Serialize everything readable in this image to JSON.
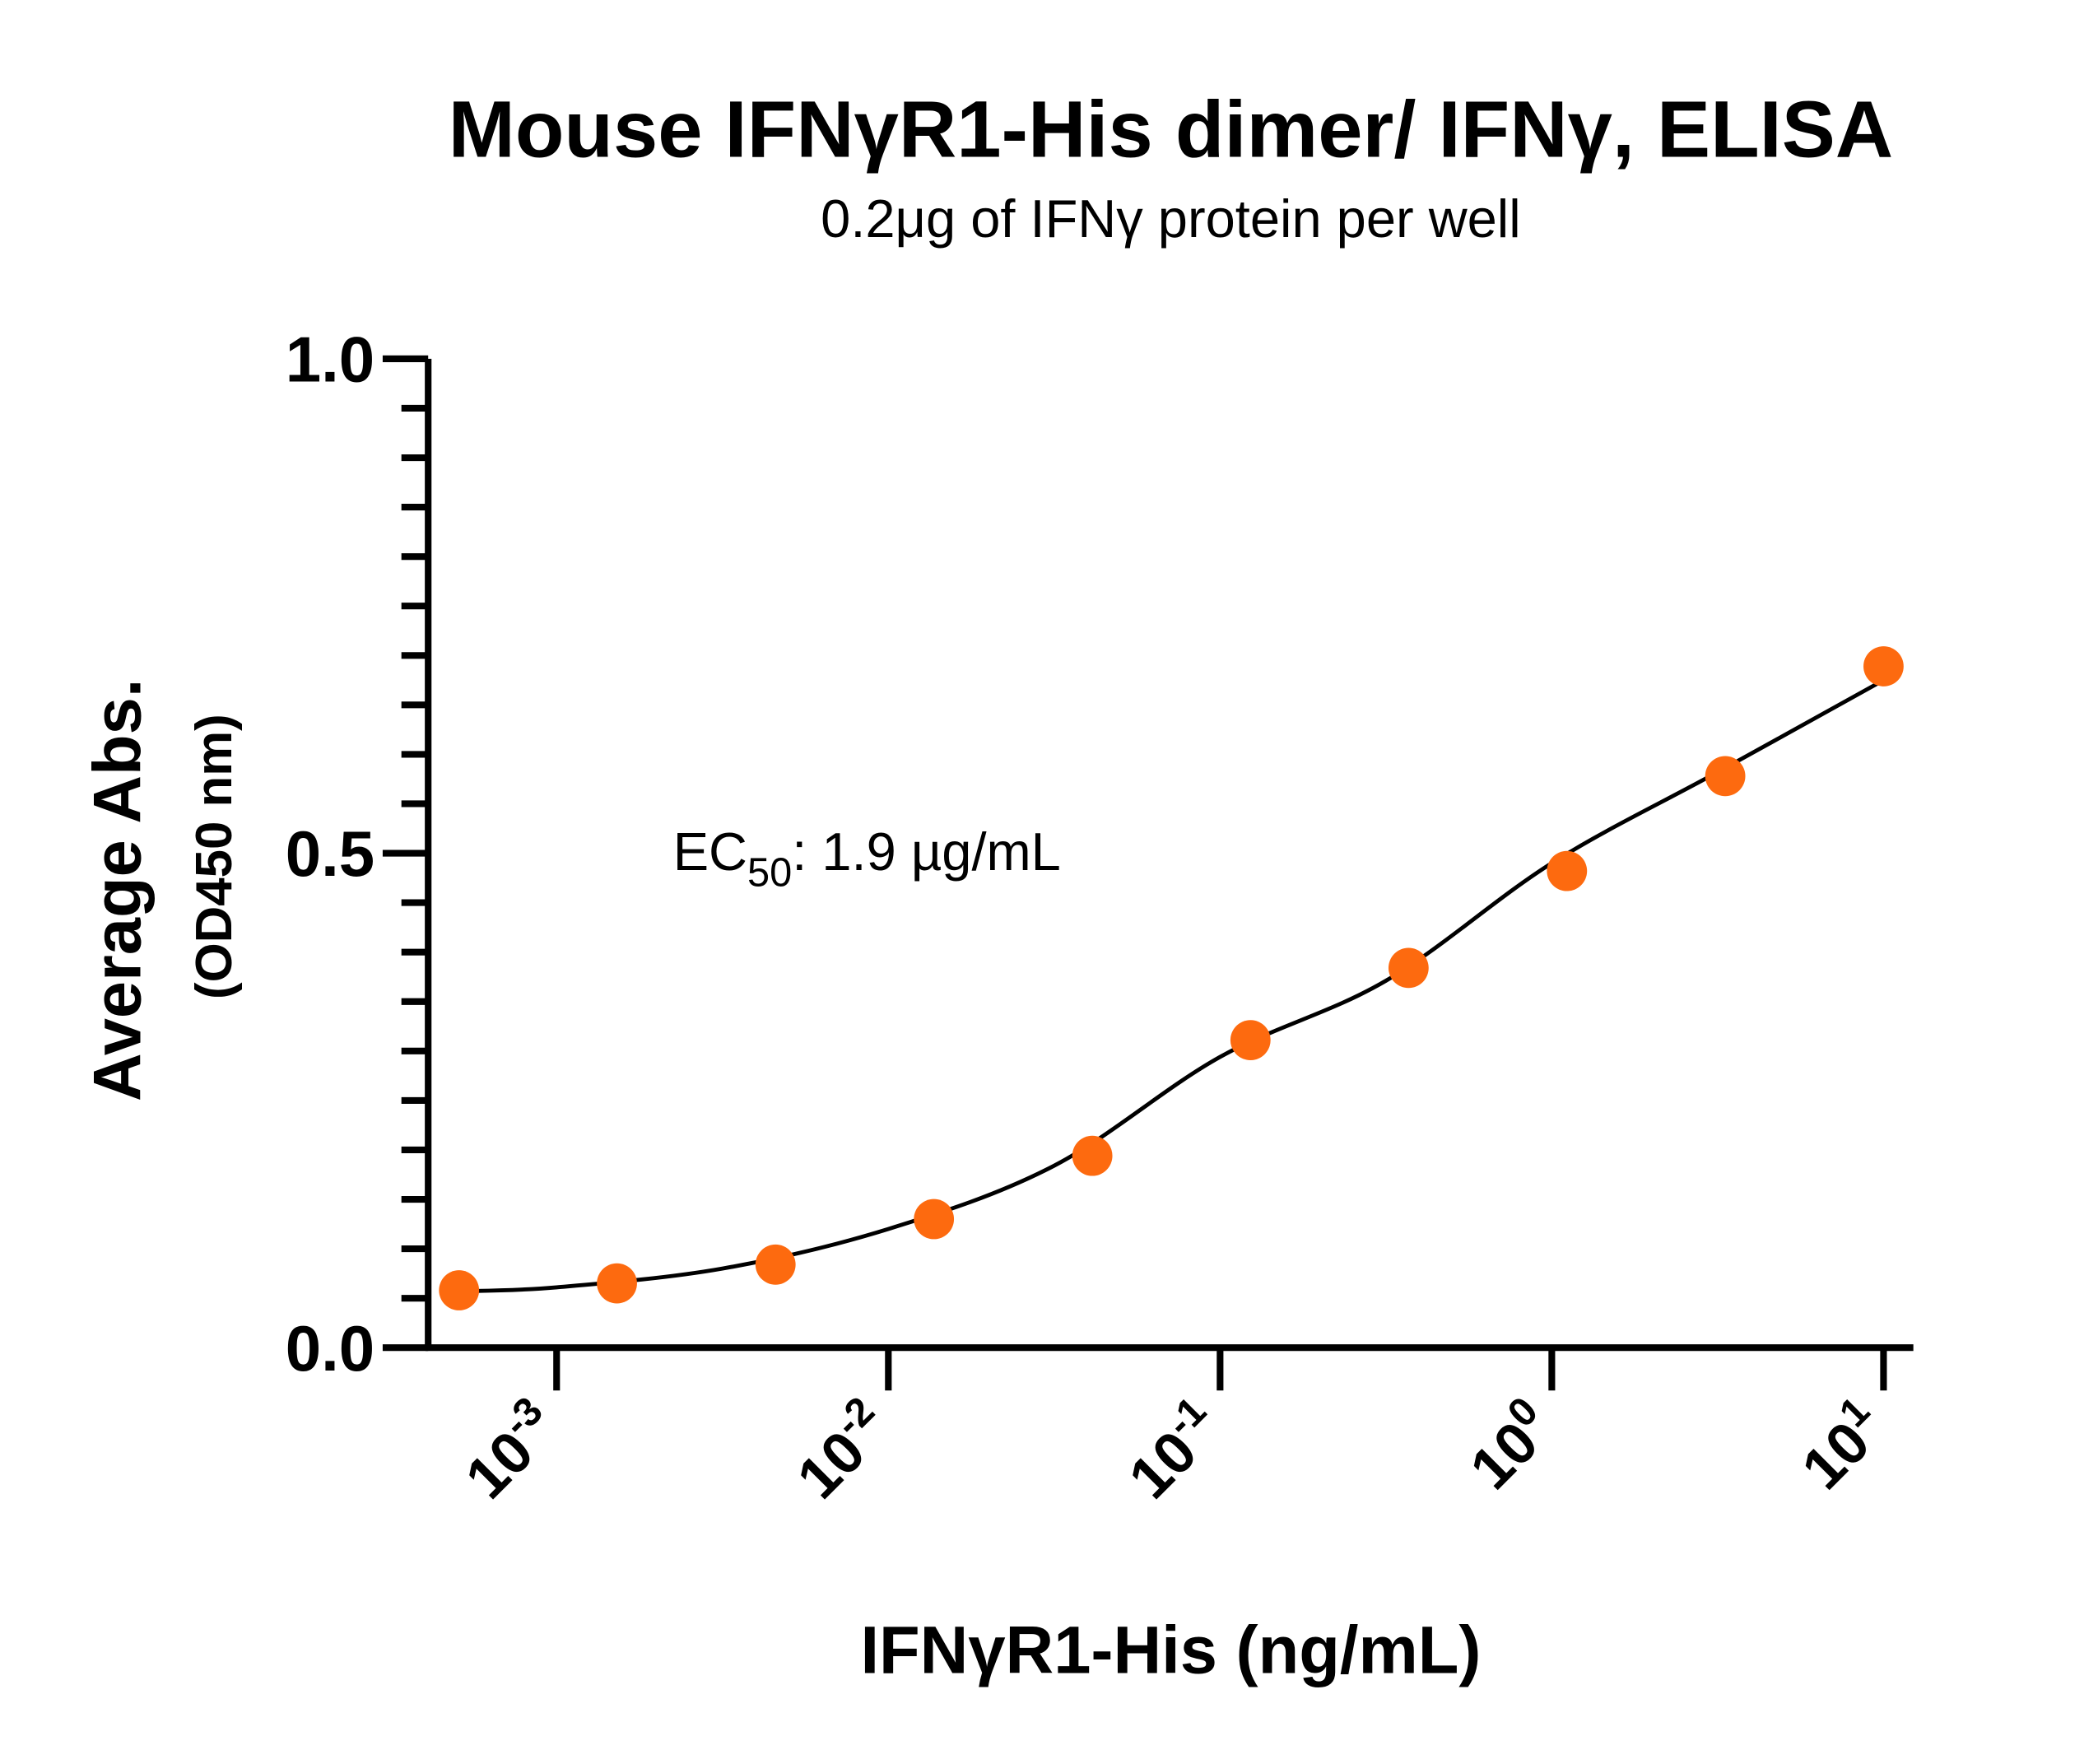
{
  "chart_data": {
    "type": "scatter",
    "title": "Mouse IFNγR1-His dimer/ IFNγ, ELISA",
    "subtitle": "0.2μg of IFNγ protein per well",
    "y_label": [
      "Average Abs.",
      "(OD450 nm)"
    ],
    "x_label": "IFNγR1-His (ng/mL)",
    "annotation": {
      "text": "EC",
      "sub": "50",
      "rest": ": 1.9 µg/mL"
    },
    "x_log": true,
    "xlim": [
      0.00041,
      12.3
    ],
    "ylim": [
      0,
      1
    ],
    "xticks": [
      {
        "value": 0.001,
        "label": "10",
        "exponent": "-3"
      },
      {
        "value": 0.01,
        "label": "10",
        "exponent": "-2"
      },
      {
        "value": 0.1,
        "label": "10",
        "exponent": "-1"
      },
      {
        "value": 1,
        "label": "10",
        "exponent": "0"
      },
      {
        "value": 10,
        "label": "10",
        "exponent": "1"
      }
    ],
    "yticks": [
      {
        "value": 0,
        "label": "0.0"
      },
      0.5,
      {
        "value": 1,
        "label": "1.0"
      }
    ],
    "yminorticks": [
      0.05,
      0.1,
      0.15,
      0.2,
      0.25,
      0.3,
      0.35,
      0.4,
      0.45,
      0.55,
      0.6,
      0.65,
      0.7,
      0.75,
      0.8,
      0.85,
      0.9,
      0.95
    ],
    "series": [
      {
        "color": "#fd6a0f",
        "x": [
          0.000508,
          0.00152,
          0.00457,
          0.01372,
          0.0412,
          0.1235,
          0.37,
          1.111,
          3.333,
          10
        ],
        "values": [
          0.058,
          0.065,
          0.084,
          0.13,
          0.194,
          0.311,
          0.384,
          0.482,
          0.578,
          0.689
        ]
      }
    ],
    "fit": {
      "color": "#000000",
      "x": [
        0.000508,
        0.001,
        0.00316,
        0.01,
        0.0316,
        0.1,
        0.316,
        1,
        3.16,
        10
      ],
      "values": [
        0.057,
        0.061,
        0.08,
        0.12,
        0.184,
        0.294,
        0.371,
        0.49,
        0.582,
        0.675
      ]
    }
  }
}
